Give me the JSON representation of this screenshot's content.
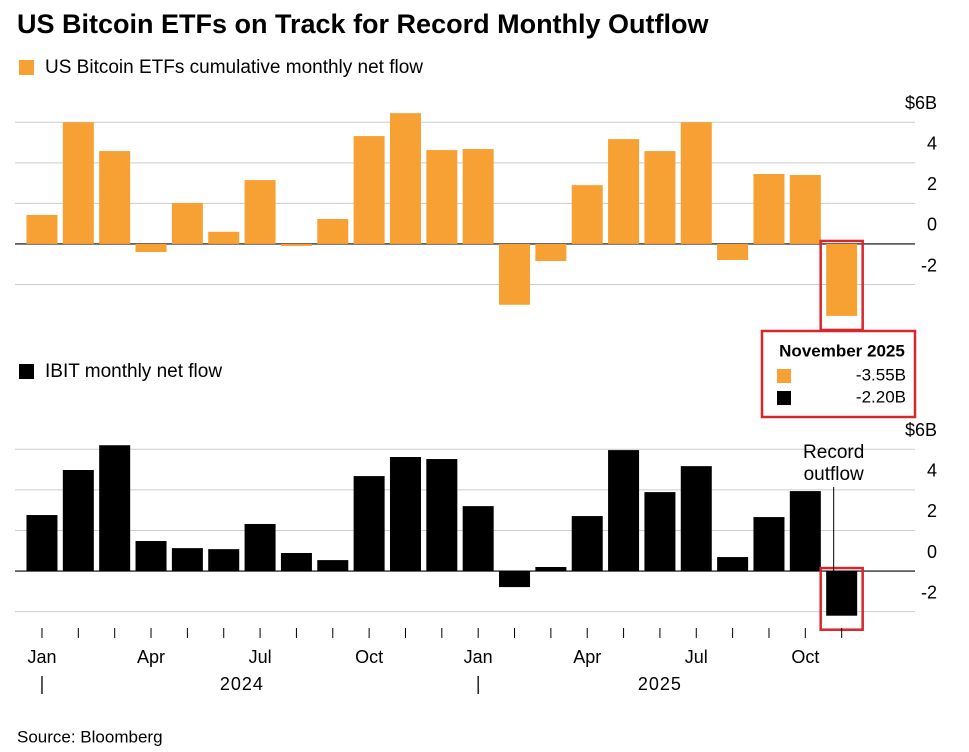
{
  "title": "US Bitcoin ETFs on Track for Record Monthly Outflow",
  "source": "Source: Bloomberg",
  "chart_data": [
    {
      "type": "bar",
      "categories": [
        "Jan",
        null,
        null,
        "Apr",
        null,
        null,
        "Jul",
        null,
        null,
        "Oct",
        null,
        null,
        "Jan",
        null,
        null,
        "Apr",
        null,
        null,
        "Jul",
        null,
        null,
        "Oct",
        null
      ],
      "years": [
        "2024",
        "2025"
      ],
      "series": [
        {
          "name": "US Bitcoin ETFs cumulative monthly net flow",
          "color": "#f7a134",
          "values": [
            1.43,
            6.0,
            4.58,
            -0.4,
            2.02,
            0.6,
            3.15,
            -0.1,
            1.23,
            5.32,
            6.45,
            4.63,
            4.68,
            -3.0,
            -0.84,
            2.9,
            5.17,
            4.58,
            6.0,
            -0.79,
            3.45,
            3.4,
            -3.55
          ],
          "value_labels": [
            null,
            null,
            null,
            null,
            null,
            null,
            null,
            null,
            null,
            null,
            null,
            null,
            null,
            null,
            null,
            null,
            null,
            null,
            null,
            null,
            null,
            null,
            "-3.55B"
          ]
        }
      ],
      "ylim": [
        -3.8,
        7
      ],
      "yticks": [
        -2,
        0,
        2,
        4,
        {
          "value": 6,
          "label": "$6B"
        }
      ],
      "grid": true,
      "callout_title": "November 2025"
    },
    {
      "type": "bar",
      "categories": [
        "Jan",
        null,
        null,
        "Apr",
        null,
        null,
        "Jul",
        null,
        null,
        "Oct",
        null,
        null,
        "Jan",
        null,
        null,
        "Apr",
        null,
        null,
        "Jul",
        null,
        null,
        "Oct",
        null
      ],
      "years": [
        "2024",
        "2025"
      ],
      "series": [
        {
          "name": "IBIT monthly net flow",
          "color": "#000000",
          "values": [
            2.76,
            4.98,
            6.2,
            1.48,
            1.13,
            1.08,
            2.32,
            0.89,
            0.54,
            4.68,
            5.62,
            5.52,
            3.2,
            -0.79,
            0.2,
            2.71,
            5.96,
            3.89,
            5.17,
            0.69,
            2.66,
            3.94,
            -2.2
          ],
          "value_labels": [
            null,
            null,
            null,
            null,
            null,
            null,
            null,
            null,
            null,
            null,
            null,
            null,
            null,
            null,
            null,
            null,
            null,
            null,
            null,
            null,
            null,
            null,
            "-2.20B"
          ]
        }
      ],
      "ylim": [
        -3.2,
        7
      ],
      "yticks": [
        -2,
        0,
        2,
        4,
        {
          "value": 6,
          "label": "$6B"
        }
      ],
      "grid": true,
      "annotation": "Record outflow"
    }
  ]
}
